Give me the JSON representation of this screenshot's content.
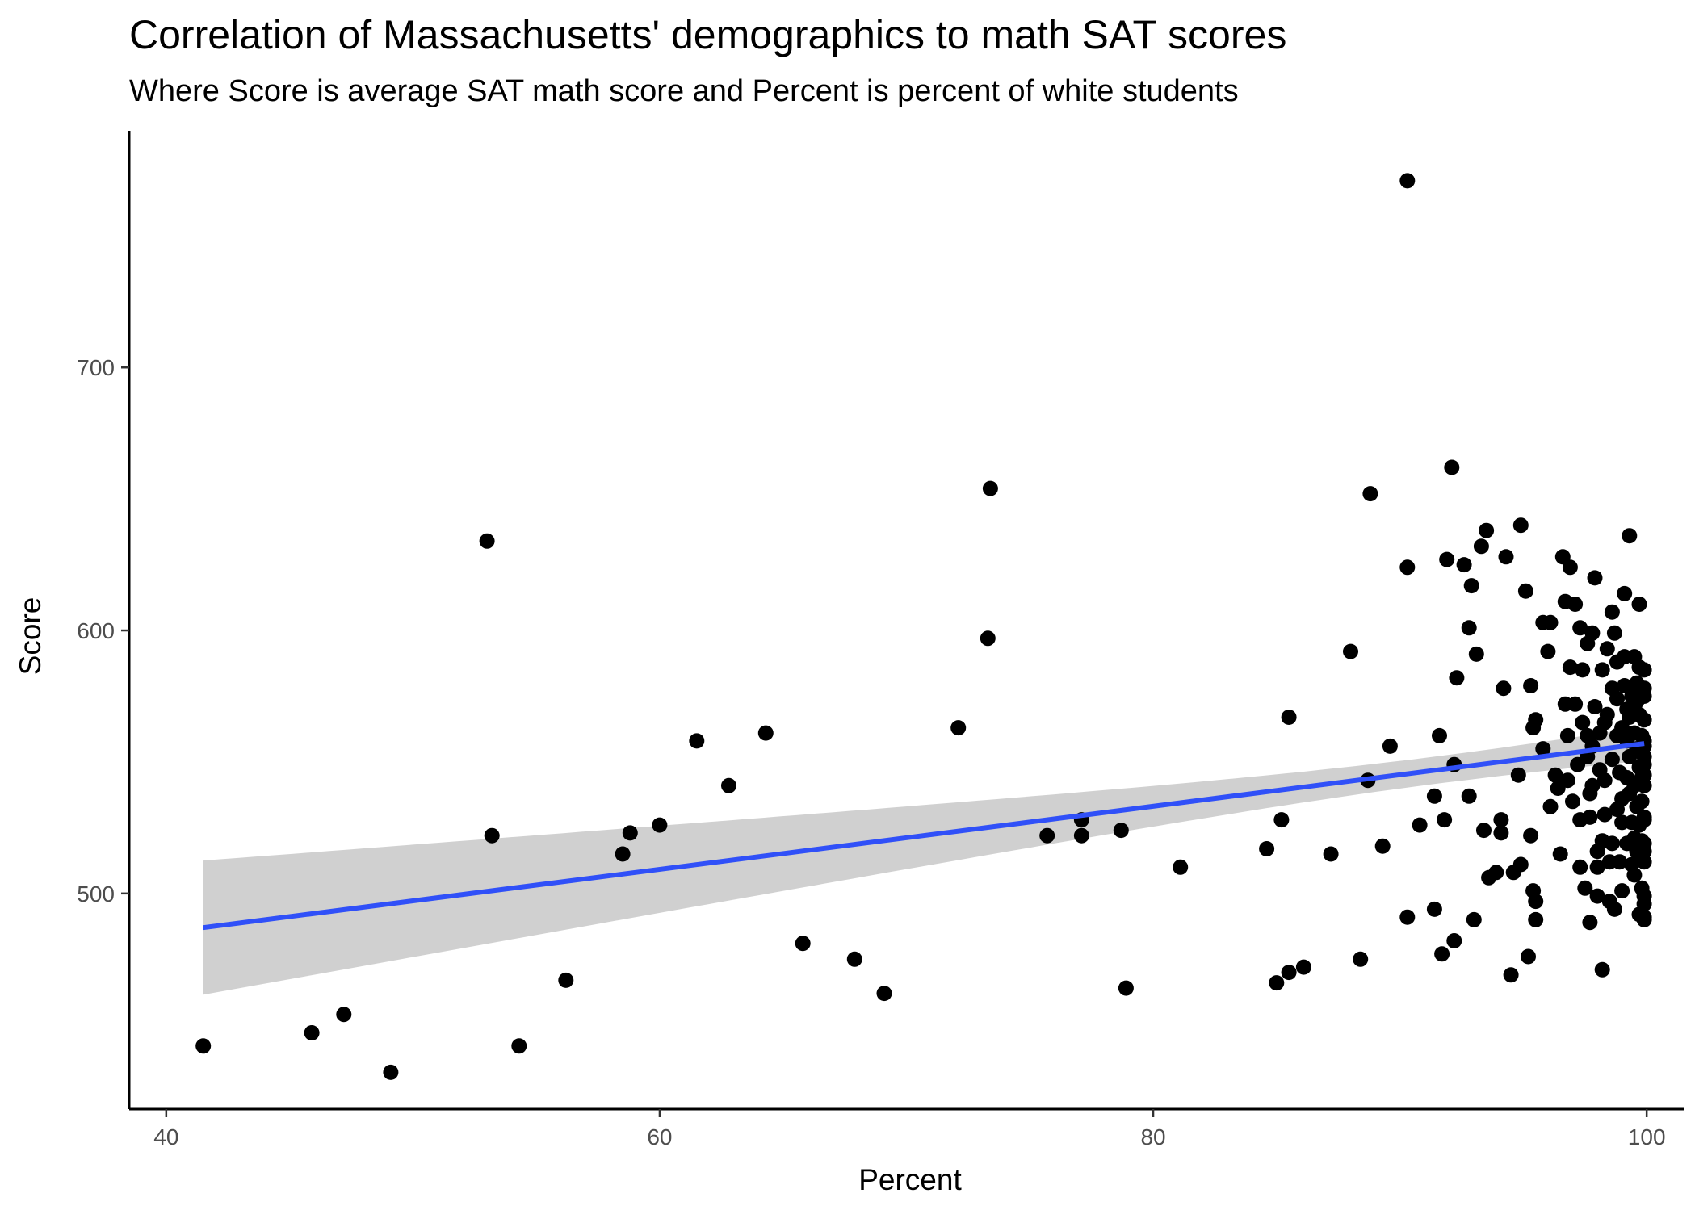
{
  "chart_data": {
    "type": "scatter",
    "title": "Correlation of Massachusetts' demographics to math SAT scores",
    "subtitle": "Where Score is average SAT math score and Percent is percent of white students",
    "xlabel": "Percent",
    "ylabel": "Score",
    "xlim": [
      38.5,
      101.5
    ],
    "ylim": [
      418,
      790
    ],
    "xticks": [
      "40",
      "60",
      "80",
      "100"
    ],
    "yticks": [
      "500",
      "600",
      "700"
    ],
    "grid": false,
    "legend": "none",
    "colors": {
      "points": "#000000",
      "fit_line": "#3050F8",
      "confidence_band": "#BEBEBE",
      "axis": "#000000"
    },
    "fit": {
      "method": "lm",
      "x_range": [
        41.5,
        99.9
      ],
      "y_at_start": 487,
      "y_at_end": 557,
      "band_lower_start": 462,
      "band_upper_start": 513,
      "band_lower_end": 550,
      "band_upper_end": 563,
      "pivot_x": 91.5
    },
    "points": [
      [
        41.5,
        442
      ],
      [
        45.9,
        447
      ],
      [
        47.2,
        454
      ],
      [
        49.1,
        432
      ],
      [
        53.0,
        634
      ],
      [
        53.2,
        522
      ],
      [
        54.3,
        442
      ],
      [
        56.2,
        467
      ],
      [
        58.5,
        515
      ],
      [
        58.8,
        523
      ],
      [
        60.0,
        526
      ],
      [
        61.5,
        558
      ],
      [
        62.8,
        541
      ],
      [
        64.3,
        561
      ],
      [
        65.8,
        481
      ],
      [
        67.9,
        475
      ],
      [
        69.1,
        462
      ],
      [
        72.1,
        563
      ],
      [
        73.3,
        597
      ],
      [
        73.4,
        654
      ],
      [
        75.7,
        522
      ],
      [
        77.1,
        528
      ],
      [
        77.1,
        522
      ],
      [
        78.7,
        524
      ],
      [
        78.9,
        464
      ],
      [
        81.1,
        510
      ],
      [
        84.6,
        517
      ],
      [
        85.0,
        466
      ],
      [
        85.2,
        528
      ],
      [
        85.5,
        567
      ],
      [
        85.5,
        470
      ],
      [
        86.1,
        472
      ],
      [
        87.2,
        515
      ],
      [
        88.0,
        592
      ],
      [
        88.4,
        475
      ],
      [
        88.7,
        543
      ],
      [
        88.8,
        652
      ],
      [
        89.3,
        518
      ],
      [
        89.6,
        556
      ],
      [
        90.3,
        771
      ],
      [
        90.3,
        624
      ],
      [
        90.3,
        491
      ],
      [
        90.8,
        526
      ],
      [
        91.4,
        494
      ],
      [
        91.4,
        537
      ],
      [
        91.6,
        560
      ],
      [
        91.7,
        477
      ],
      [
        91.8,
        528
      ],
      [
        91.9,
        627
      ],
      [
        92.1,
        662
      ],
      [
        92.2,
        482
      ],
      [
        92.2,
        549
      ],
      [
        92.3,
        582
      ],
      [
        92.6,
        625
      ],
      [
        92.8,
        537
      ],
      [
        92.8,
        601
      ],
      [
        92.9,
        617
      ],
      [
        93.0,
        490
      ],
      [
        93.1,
        591
      ],
      [
        93.3,
        632
      ],
      [
        93.4,
        524
      ],
      [
        93.5,
        638
      ],
      [
        93.6,
        506
      ],
      [
        93.9,
        508
      ],
      [
        94.1,
        528
      ],
      [
        94.1,
        523
      ],
      [
        94.2,
        578
      ],
      [
        94.3,
        628
      ],
      [
        94.5,
        469
      ],
      [
        94.6,
        508
      ],
      [
        94.8,
        545
      ],
      [
        94.9,
        640
      ],
      [
        94.9,
        511
      ],
      [
        95.1,
        615
      ],
      [
        95.2,
        476
      ],
      [
        95.3,
        579
      ],
      [
        95.3,
        522
      ],
      [
        95.4,
        563
      ],
      [
        95.4,
        501
      ],
      [
        95.5,
        566
      ],
      [
        95.5,
        490
      ],
      [
        95.5,
        497
      ],
      [
        95.8,
        603
      ],
      [
        95.8,
        555
      ],
      [
        96.0,
        592
      ],
      [
        96.1,
        603
      ],
      [
        96.1,
        533
      ],
      [
        96.3,
        545
      ],
      [
        96.4,
        540
      ],
      [
        96.5,
        515
      ],
      [
        96.6,
        628
      ],
      [
        96.7,
        611
      ],
      [
        96.7,
        572
      ],
      [
        96.8,
        543
      ],
      [
        96.8,
        560
      ],
      [
        96.9,
        586
      ],
      [
        96.9,
        624
      ],
      [
        97.0,
        535
      ],
      [
        97.1,
        610
      ],
      [
        97.1,
        572
      ],
      [
        97.2,
        549
      ],
      [
        97.3,
        601
      ],
      [
        97.3,
        510
      ],
      [
        97.3,
        528
      ],
      [
        97.4,
        585
      ],
      [
        97.4,
        565
      ],
      [
        97.5,
        502
      ],
      [
        97.6,
        595
      ],
      [
        97.6,
        560
      ],
      [
        97.6,
        552
      ],
      [
        97.7,
        538
      ],
      [
        97.7,
        529
      ],
      [
        97.7,
        489
      ],
      [
        97.8,
        599
      ],
      [
        97.8,
        556
      ],
      [
        97.8,
        541
      ],
      [
        97.9,
        620
      ],
      [
        97.9,
        571
      ],
      [
        98.0,
        516
      ],
      [
        98.0,
        499
      ],
      [
        98.0,
        510
      ],
      [
        98.1,
        561
      ],
      [
        98.1,
        547
      ],
      [
        98.2,
        520
      ],
      [
        98.2,
        471
      ],
      [
        98.2,
        585
      ],
      [
        98.3,
        565
      ],
      [
        98.3,
        543
      ],
      [
        98.3,
        530
      ],
      [
        98.4,
        568
      ],
      [
        98.4,
        593
      ],
      [
        98.5,
        512
      ],
      [
        98.5,
        497
      ],
      [
        98.6,
        607
      ],
      [
        98.6,
        578
      ],
      [
        98.6,
        551
      ],
      [
        98.6,
        519
      ],
      [
        98.7,
        494
      ],
      [
        98.7,
        599
      ],
      [
        98.8,
        588
      ],
      [
        98.8,
        574
      ],
      [
        98.8,
        560
      ],
      [
        98.8,
        532
      ],
      [
        98.9,
        512
      ],
      [
        98.9,
        546
      ],
      [
        99.0,
        563
      ],
      [
        99.0,
        536
      ],
      [
        99.0,
        527
      ],
      [
        99.0,
        501
      ],
      [
        99.1,
        614
      ],
      [
        99.1,
        579
      ],
      [
        99.1,
        590
      ],
      [
        99.2,
        570
      ],
      [
        99.2,
        558
      ],
      [
        99.2,
        544
      ],
      [
        99.2,
        519
      ],
      [
        99.3,
        636
      ],
      [
        99.3,
        567
      ],
      [
        99.3,
        552
      ],
      [
        99.3,
        538
      ],
      [
        99.4,
        575
      ],
      [
        99.4,
        527
      ],
      [
        99.4,
        511
      ],
      [
        99.5,
        590
      ],
      [
        99.5,
        561
      ],
      [
        99.5,
        541
      ],
      [
        99.5,
        521
      ],
      [
        99.5,
        507
      ],
      [
        99.6,
        580
      ],
      [
        99.6,
        573
      ],
      [
        99.6,
        555
      ],
      [
        99.6,
        533
      ],
      [
        99.6,
        516
      ],
      [
        99.7,
        610
      ],
      [
        99.7,
        586
      ],
      [
        99.7,
        568
      ],
      [
        99.7,
        548
      ],
      [
        99.7,
        526
      ],
      [
        99.7,
        514
      ],
      [
        99.7,
        492
      ],
      [
        99.8,
        576
      ],
      [
        99.8,
        560
      ],
      [
        99.8,
        544
      ],
      [
        99.8,
        535
      ],
      [
        99.8,
        520
      ],
      [
        99.8,
        502
      ],
      [
        99.9,
        585
      ],
      [
        99.9,
        566
      ],
      [
        99.9,
        552
      ],
      [
        99.9,
        529
      ],
      [
        99.9,
        516
      ],
      [
        99.9,
        490
      ],
      [
        99.9,
        578
      ],
      [
        99.9,
        556
      ],
      [
        99.9,
        541
      ],
      [
        99.9,
        519
      ],
      [
        99.9,
        499
      ],
      [
        99.9,
        575
      ],
      [
        99.9,
        549
      ],
      [
        99.9,
        528
      ],
      [
        99.9,
        512
      ],
      [
        99.9,
        496
      ],
      [
        99.9,
        491
      ],
      [
        99.9,
        545
      ],
      [
        99.9,
        558
      ]
    ]
  }
}
